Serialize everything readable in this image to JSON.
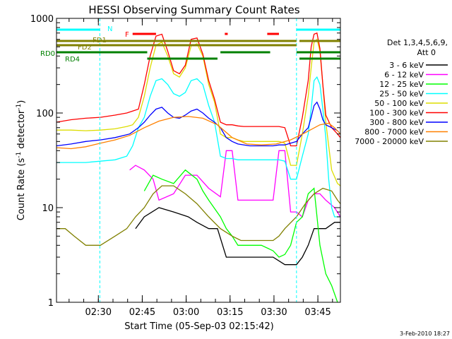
{
  "chart_data": {
    "type": "line",
    "title": "HESSI Observing Summary Count Rates",
    "xlabel": "Start Time (05-Sep-03 02:15:42)",
    "ylabel_prefix": "Count Rate (s",
    "ylabel_sup1": "-1",
    "ylabel_mid": " detector",
    "ylabel_sup2": "-1",
    "ylabel_suffix": ")",
    "y_scale": "log",
    "ylim": [
      1,
      1000
    ],
    "xlim_minutes": [
      0,
      97
    ],
    "y_ticks": [
      {
        "value": 1,
        "label": "1"
      },
      {
        "value": 10,
        "label": "10"
      },
      {
        "value": 100,
        "label": "100"
      },
      {
        "value": 1000,
        "label": "1000"
      }
    ],
    "x_ticks": [
      {
        "value": 14.3,
        "label": "02:30"
      },
      {
        "value": 29.3,
        "label": "02:45"
      },
      {
        "value": 44.3,
        "label": "03:00"
      },
      {
        "value": 59.3,
        "label": "03:15"
      },
      {
        "value": 74.3,
        "label": "03:30"
      },
      {
        "value": 89.3,
        "label": "03:45"
      }
    ],
    "legend": {
      "header1": "Det 1,3,4,5,6,9,",
      "header2": "Att 0",
      "placement": "right"
    },
    "date_stamp": "3-Feb-2010 18:27",
    "grid": false,
    "series": [
      {
        "name": "3 - 6 keV",
        "color": "#000000",
        "x": [
          0,
          10,
          20,
          27,
          30,
          35,
          40,
          45,
          48,
          52,
          55,
          58,
          62,
          66,
          70,
          74,
          78,
          80,
          82,
          84,
          86,
          88,
          90,
          92,
          95,
          97
        ],
        "y": [
          null,
          null,
          null,
          6,
          8,
          10,
          9,
          8,
          7,
          6,
          6,
          3,
          3,
          3,
          3,
          3,
          2.5,
          2.5,
          2.5,
          3,
          4,
          6,
          6,
          6,
          7,
          7
        ]
      },
      {
        "name": "6 - 12 keV",
        "color": "#ff00ff",
        "x": [
          25,
          27,
          30,
          33,
          35,
          40,
          44,
          48,
          52,
          56,
          58,
          60,
          62,
          66,
          70,
          72,
          74,
          76,
          78,
          80,
          82,
          84,
          86,
          88,
          90,
          92,
          95,
          97
        ],
        "y": [
          25,
          28,
          25,
          20,
          12,
          14,
          22,
          22,
          16,
          13,
          40,
          40,
          12,
          12,
          12,
          12,
          12,
          40,
          40,
          9,
          9,
          8,
          12,
          14,
          14,
          12,
          10,
          8
        ]
      },
      {
        "name": "12 - 25 keV",
        "color": "#00ff00",
        "x": [
          30,
          33,
          36,
          40,
          44,
          48,
          50,
          52,
          56,
          58,
          60,
          62,
          66,
          70,
          74,
          76,
          78,
          80,
          82,
          84,
          86,
          88,
          90,
          92,
          94,
          96
        ],
        "y": [
          15,
          22,
          20,
          18,
          25,
          20,
          15,
          12,
          8,
          6,
          5,
          4,
          4,
          4,
          3.5,
          3,
          3.2,
          4,
          7,
          8,
          14,
          16,
          4,
          2,
          1.5,
          1
        ]
      },
      {
        "name": "25 - 50 keV",
        "color": "#00ffff",
        "x": [
          0,
          5,
          10,
          15,
          20,
          24,
          26,
          28,
          30,
          32,
          34,
          36,
          38,
          40,
          42,
          44,
          46,
          48,
          50,
          52,
          54,
          56,
          58,
          60,
          62,
          64,
          66,
          70,
          74,
          76,
          78,
          80,
          82,
          84,
          86,
          87,
          88,
          89,
          90,
          91,
          92,
          93,
          94,
          95,
          96,
          97
        ],
        "y": [
          30,
          30,
          30,
          31,
          32,
          35,
          45,
          70,
          90,
          150,
          220,
          230,
          200,
          160,
          150,
          165,
          220,
          230,
          200,
          120,
          80,
          35,
          33,
          33,
          32,
          32,
          32,
          32,
          32,
          32,
          31,
          20,
          20,
          35,
          60,
          110,
          220,
          240,
          200,
          110,
          55,
          20,
          10,
          8,
          8,
          8
        ]
      },
      {
        "name": "50 - 100 keV",
        "color": "#dddd00",
        "x": [
          0,
          5,
          10,
          15,
          20,
          24,
          26,
          28,
          30,
          32,
          34,
          36,
          38,
          40,
          42,
          44,
          46,
          48,
          50,
          52,
          54,
          56,
          58,
          60,
          62,
          64,
          66,
          70,
          74,
          76,
          78,
          80,
          82,
          84,
          86,
          87,
          88,
          89,
          90,
          91,
          92,
          94,
          96,
          97
        ],
        "y": [
          66,
          66,
          65,
          66,
          68,
          72,
          75,
          90,
          150,
          300,
          520,
          560,
          400,
          260,
          240,
          300,
          510,
          540,
          400,
          200,
          130,
          60,
          55,
          55,
          52,
          50,
          50,
          50,
          50,
          50,
          48,
          28,
          28,
          60,
          150,
          300,
          560,
          600,
          450,
          200,
          80,
          25,
          18,
          17
        ]
      },
      {
        "name": "100 - 300 keV",
        "color": "#ff0000",
        "x": [
          0,
          5,
          10,
          15,
          20,
          24,
          26,
          28,
          30,
          32,
          34,
          36,
          38,
          40,
          42,
          44,
          46,
          48,
          50,
          52,
          54,
          56,
          58,
          60,
          62,
          64,
          66,
          70,
          74,
          76,
          78,
          80,
          82,
          84,
          86,
          87,
          88,
          89,
          90,
          91,
          92,
          94,
          96,
          97
        ],
        "y": [
          80,
          85,
          88,
          90,
          95,
          100,
          105,
          110,
          200,
          400,
          650,
          680,
          450,
          280,
          260,
          320,
          600,
          620,
          420,
          220,
          140,
          80,
          75,
          75,
          73,
          72,
          72,
          72,
          72,
          72,
          70,
          45,
          45,
          90,
          220,
          500,
          680,
          700,
          480,
          200,
          95,
          70,
          60,
          55
        ]
      },
      {
        "name": "300 - 800 keV",
        "color": "#0000ff",
        "x": [
          0,
          5,
          10,
          15,
          20,
          25,
          28,
          30,
          32,
          34,
          36,
          38,
          40,
          42,
          44,
          46,
          48,
          50,
          52,
          54,
          56,
          58,
          60,
          62,
          66,
          70,
          74,
          76,
          78,
          80,
          82,
          84,
          86,
          87,
          88,
          89,
          90,
          91,
          92,
          94,
          96,
          97
        ],
        "y": [
          45,
          47,
          50,
          52,
          55,
          60,
          70,
          80,
          95,
          110,
          115,
          100,
          90,
          88,
          95,
          105,
          110,
          100,
          88,
          80,
          70,
          55,
          50,
          47,
          45,
          45,
          45,
          46,
          46,
          48,
          50,
          60,
          70,
          90,
          120,
          130,
          110,
          85,
          75,
          70,
          65,
          60
        ]
      },
      {
        "name": "800 - 7000 keV",
        "color": "#ff8000",
        "x": [
          0,
          5,
          10,
          15,
          20,
          25,
          30,
          35,
          40,
          45,
          50,
          55,
          60,
          65,
          70,
          75,
          80,
          85,
          90,
          93,
          95,
          97
        ],
        "y": [
          43,
          42,
          44,
          48,
          52,
          58,
          70,
          82,
          90,
          92,
          88,
          75,
          55,
          47,
          46,
          47,
          52,
          62,
          75,
          78,
          70,
          60
        ]
      },
      {
        "name": "7000 - 20000 keV",
        "color": "#808000",
        "x": [
          0,
          3,
          6,
          10,
          15,
          20,
          24,
          27,
          30,
          33,
          36,
          40,
          44,
          48,
          52,
          56,
          60,
          63,
          66,
          70,
          74,
          76,
          78,
          82,
          85,
          88,
          91,
          94,
          96,
          97
        ],
        "y": [
          6,
          6,
          5,
          4,
          4,
          5,
          6,
          8,
          10,
          14,
          17,
          17,
          14,
          11,
          8,
          6,
          5,
          4.5,
          4.5,
          4.5,
          4.5,
          5,
          6,
          8,
          11,
          14,
          16,
          15,
          12,
          11
        ]
      }
    ],
    "state_bars": [
      {
        "label": "N",
        "color": "#00ffff",
        "segments": [
          [
            0,
            14.8
          ],
          [
            82,
            97
          ]
        ]
      },
      {
        "label": "F",
        "color": "#ff0000",
        "segments": [
          [
            26,
            34
          ],
          [
            57.5,
            58.5
          ],
          [
            72,
            76
          ]
        ]
      },
      {
        "label": "FD1",
        "color": "#808000",
        "segments": [
          [
            0,
            82
          ],
          [
            83,
            97
          ]
        ]
      },
      {
        "label": "FD2",
        "color": "#808000",
        "segments": [
          [
            0,
            82
          ]
        ]
      },
      {
        "label": "RD0",
        "color": "#008000",
        "segments": [
          [
            0,
            31
          ],
          [
            56,
            73
          ],
          [
            82,
            97
          ]
        ]
      },
      {
        "label": "RD4",
        "color": "#008000",
        "segments": [
          [
            31,
            55
          ],
          [
            83,
            97
          ]
        ]
      }
    ]
  }
}
